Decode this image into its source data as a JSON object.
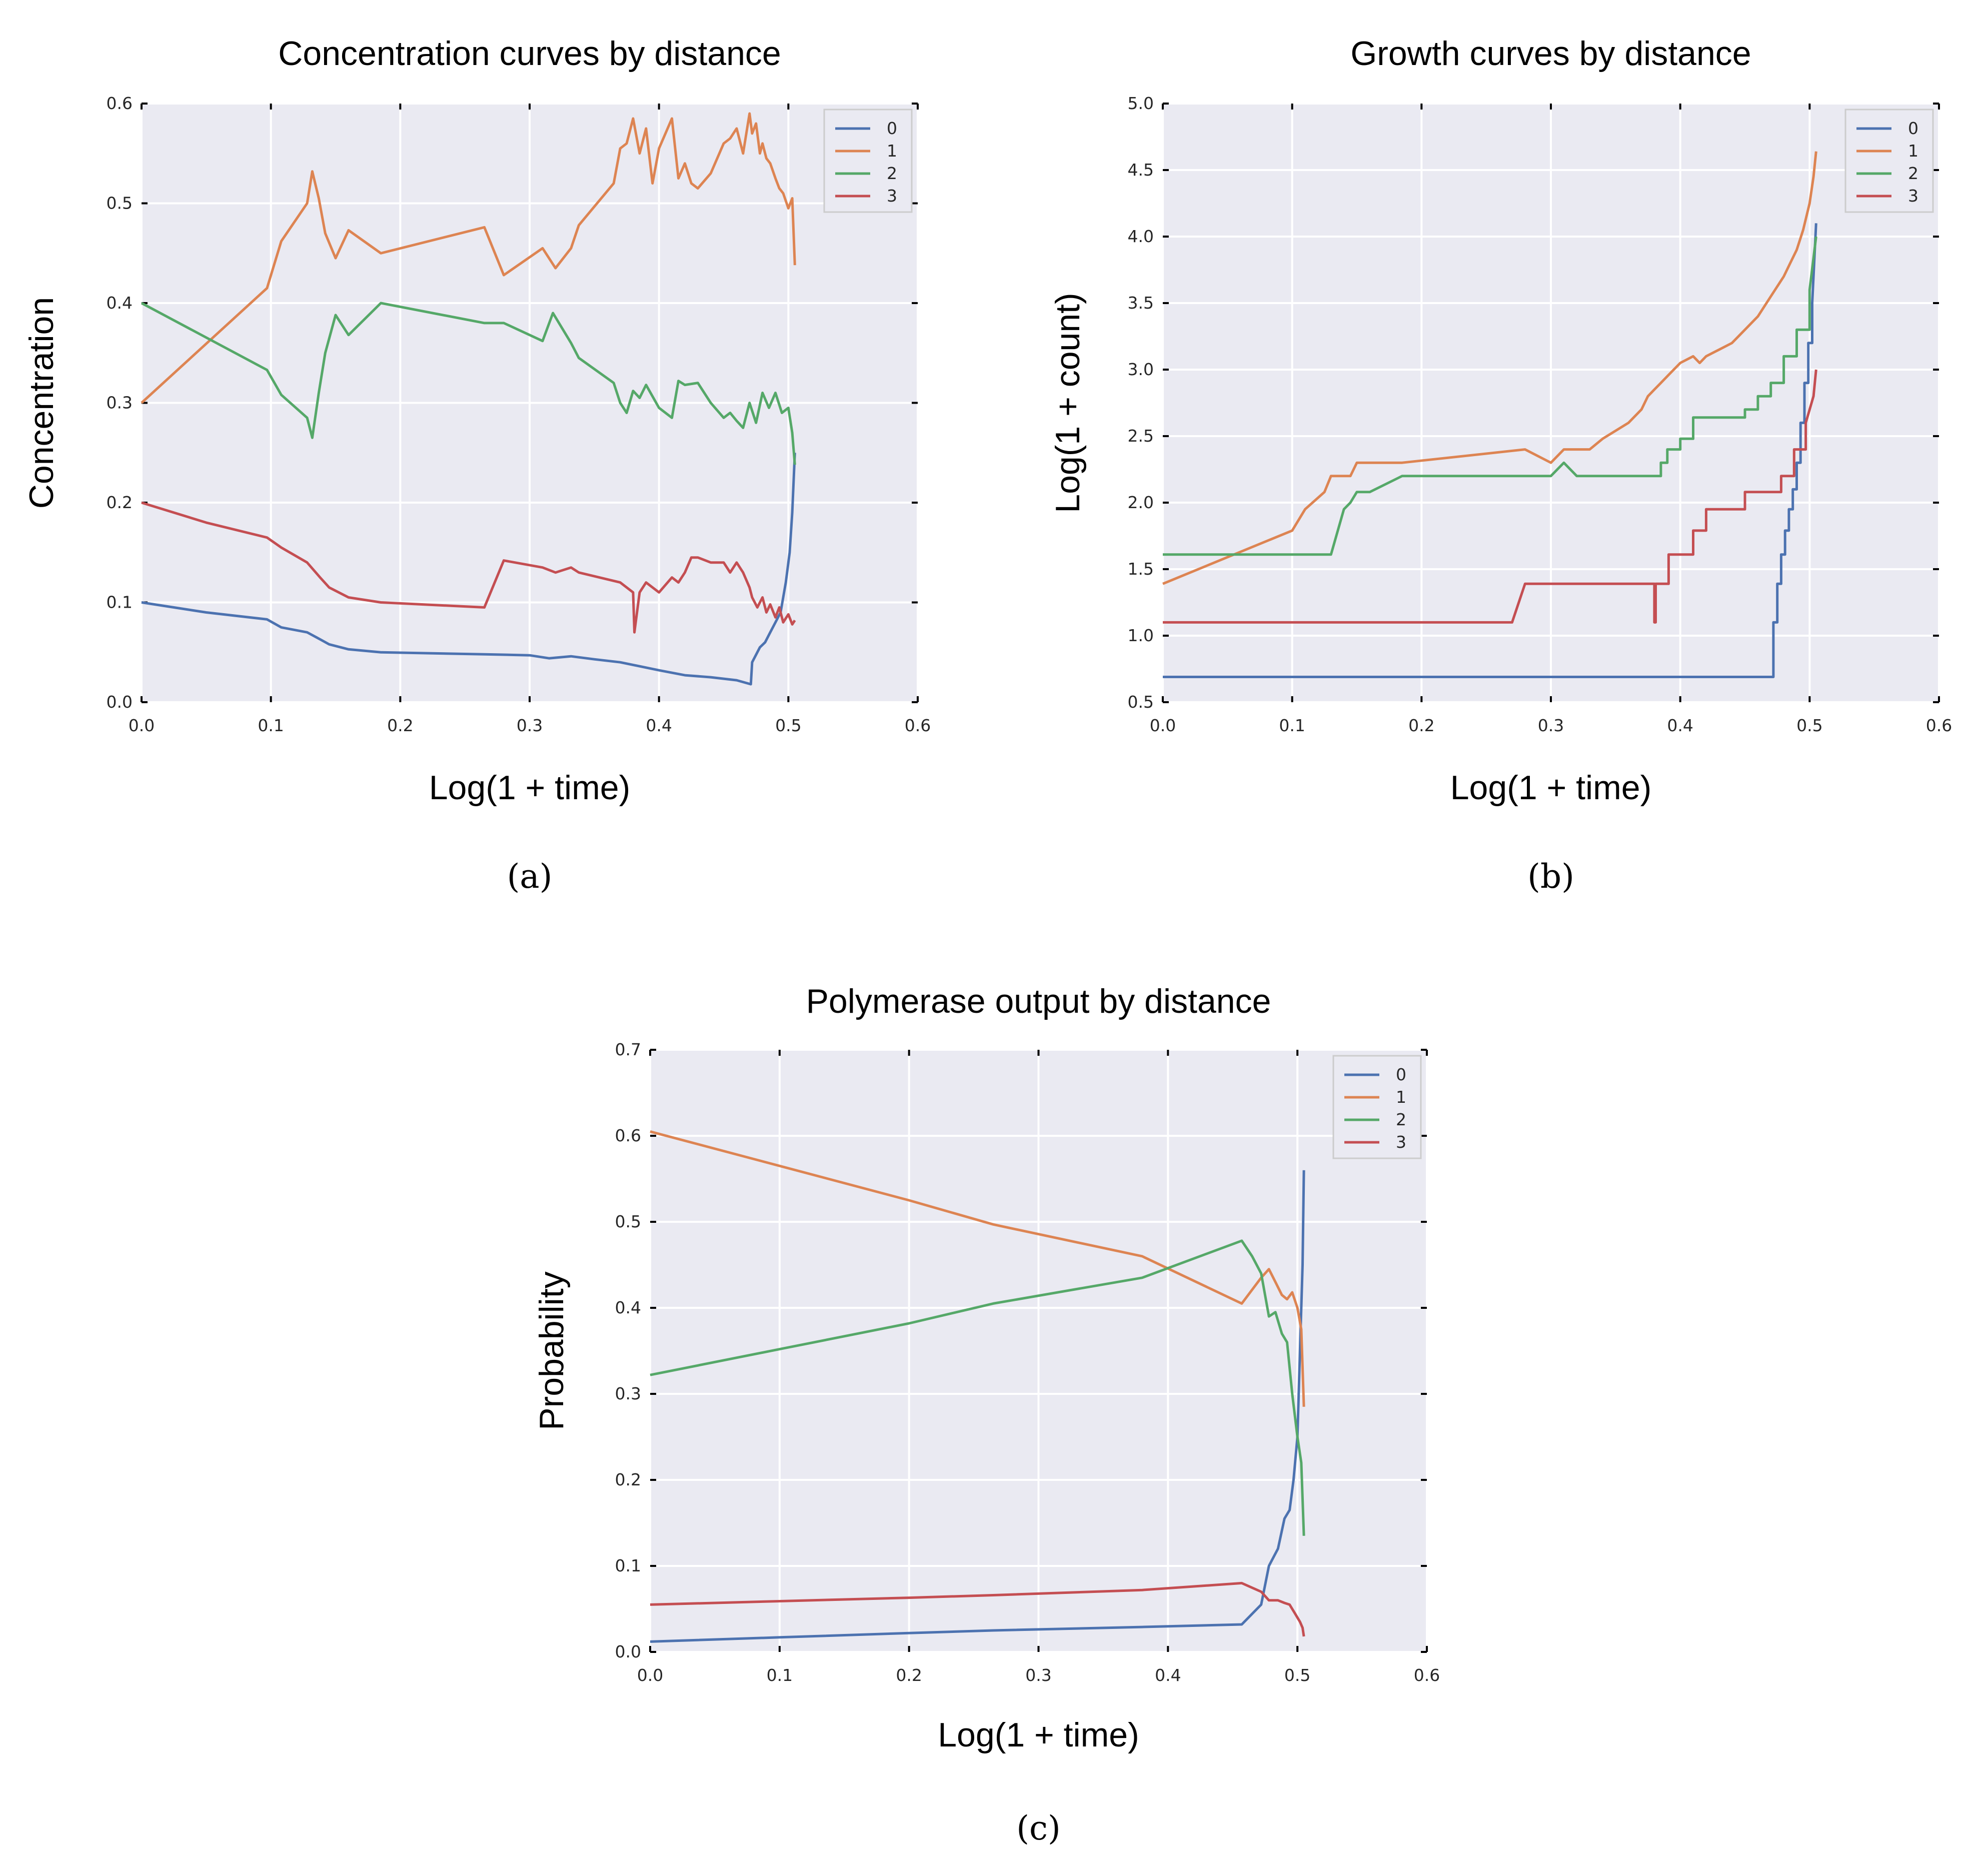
{
  "chart_data": [
    {
      "type": "line",
      "title": "Concentration curves by distance",
      "xlabel": "Log(1 + time)",
      "ylabel": "Concentration",
      "caption": "(a)",
      "xlim": [
        0,
        0.6
      ],
      "ylim": [
        0,
        0.6
      ],
      "xticks": [
        "0.0",
        "0.1",
        "0.2",
        "0.3",
        "0.4",
        "0.5",
        "0.6"
      ],
      "yticks": [
        "0.0",
        "0.1",
        "0.2",
        "0.3",
        "0.4",
        "0.5",
        "0.6"
      ],
      "grid": true,
      "legend": "top-right",
      "series": [
        {
          "name": "0",
          "color": "#4c72b0",
          "x": [
            0,
            0.05,
            0.097,
            0.108,
            0.128,
            0.138,
            0.145,
            0.16,
            0.185,
            0.265,
            0.3,
            0.315,
            0.332,
            0.35,
            0.37,
            0.4,
            0.42,
            0.44,
            0.46,
            0.471,
            0.472,
            0.478,
            0.482,
            0.486,
            0.49,
            0.494,
            0.498,
            0.501,
            0.503,
            0.505
          ],
          "y": [
            0.1,
            0.09,
            0.083,
            0.075,
            0.07,
            0.063,
            0.058,
            0.053,
            0.05,
            0.048,
            0.047,
            0.044,
            0.046,
            0.043,
            0.04,
            0.032,
            0.027,
            0.025,
            0.022,
            0.018,
            0.04,
            0.055,
            0.06,
            0.07,
            0.08,
            0.09,
            0.12,
            0.15,
            0.19,
            0.25
          ]
        },
        {
          "name": "1",
          "color": "#dd8452",
          "x": [
            0,
            0.097,
            0.108,
            0.128,
            0.132,
            0.137,
            0.142,
            0.15,
            0.16,
            0.185,
            0.265,
            0.28,
            0.31,
            0.32,
            0.332,
            0.338,
            0.365,
            0.37,
            0.375,
            0.38,
            0.385,
            0.39,
            0.395,
            0.4,
            0.41,
            0.415,
            0.42,
            0.425,
            0.43,
            0.44,
            0.45,
            0.455,
            0.46,
            0.465,
            0.47,
            0.472,
            0.475,
            0.478,
            0.48,
            0.483,
            0.486,
            0.49,
            0.493,
            0.496,
            0.5,
            0.503,
            0.505
          ],
          "y": [
            0.3,
            0.415,
            0.462,
            0.5,
            0.532,
            0.505,
            0.47,
            0.445,
            0.473,
            0.45,
            0.476,
            0.428,
            0.455,
            0.435,
            0.455,
            0.478,
            0.52,
            0.555,
            0.56,
            0.585,
            0.55,
            0.575,
            0.52,
            0.555,
            0.585,
            0.525,
            0.54,
            0.52,
            0.515,
            0.53,
            0.56,
            0.565,
            0.575,
            0.55,
            0.59,
            0.57,
            0.58,
            0.55,
            0.56,
            0.545,
            0.54,
            0.525,
            0.515,
            0.51,
            0.495,
            0.505,
            0.438
          ]
        },
        {
          "name": "2",
          "color": "#55a868",
          "x": [
            0,
            0.097,
            0.108,
            0.128,
            0.132,
            0.137,
            0.142,
            0.15,
            0.16,
            0.185,
            0.265,
            0.28,
            0.31,
            0.318,
            0.332,
            0.338,
            0.365,
            0.37,
            0.375,
            0.38,
            0.385,
            0.39,
            0.4,
            0.41,
            0.415,
            0.42,
            0.43,
            0.44,
            0.45,
            0.455,
            0.46,
            0.465,
            0.47,
            0.475,
            0.48,
            0.485,
            0.49,
            0.495,
            0.5,
            0.503,
            0.505
          ],
          "y": [
            0.4,
            0.333,
            0.308,
            0.285,
            0.265,
            0.31,
            0.35,
            0.388,
            0.368,
            0.4,
            0.38,
            0.38,
            0.362,
            0.39,
            0.36,
            0.345,
            0.32,
            0.3,
            0.29,
            0.312,
            0.305,
            0.318,
            0.295,
            0.285,
            0.322,
            0.318,
            0.32,
            0.3,
            0.285,
            0.29,
            0.282,
            0.275,
            0.3,
            0.28,
            0.31,
            0.295,
            0.31,
            0.29,
            0.295,
            0.27,
            0.238
          ]
        },
        {
          "name": "3",
          "color": "#c44e52",
          "x": [
            0,
            0.05,
            0.097,
            0.108,
            0.128,
            0.138,
            0.145,
            0.16,
            0.185,
            0.265,
            0.28,
            0.31,
            0.32,
            0.332,
            0.338,
            0.37,
            0.38,
            0.381,
            0.385,
            0.39,
            0.4,
            0.41,
            0.415,
            0.42,
            0.425,
            0.43,
            0.44,
            0.45,
            0.455,
            0.46,
            0.465,
            0.47,
            0.472,
            0.476,
            0.48,
            0.483,
            0.486,
            0.49,
            0.493,
            0.496,
            0.5,
            0.503,
            0.505
          ],
          "y": [
            0.2,
            0.18,
            0.165,
            0.155,
            0.14,
            0.125,
            0.115,
            0.105,
            0.1,
            0.095,
            0.142,
            0.135,
            0.13,
            0.135,
            0.13,
            0.12,
            0.11,
            0.07,
            0.11,
            0.12,
            0.11,
            0.125,
            0.12,
            0.13,
            0.145,
            0.145,
            0.14,
            0.14,
            0.13,
            0.14,
            0.13,
            0.115,
            0.105,
            0.095,
            0.105,
            0.09,
            0.098,
            0.085,
            0.095,
            0.08,
            0.088,
            0.078,
            0.082
          ]
        }
      ]
    },
    {
      "type": "line",
      "title": "Growth curves by distance",
      "xlabel": "Log(1 + time)",
      "ylabel": "Log(1 + count)",
      "caption": "(b)",
      "xlim": [
        0,
        0.6
      ],
      "ylim": [
        0.5,
        5.0
      ],
      "xticks": [
        "0.0",
        "0.1",
        "0.2",
        "0.3",
        "0.4",
        "0.5",
        "0.6"
      ],
      "yticks": [
        "0.5",
        "1.0",
        "1.5",
        "2.0",
        "2.5",
        "3.0",
        "3.5",
        "4.0",
        "4.5",
        "5.0"
      ],
      "grid": true,
      "legend": "top-right",
      "series": [
        {
          "name": "0",
          "color": "#4c72b0",
          "x": [
            0,
            0.47,
            0.472,
            0.472,
            0.475,
            0.475,
            0.478,
            0.478,
            0.481,
            0.481,
            0.484,
            0.484,
            0.487,
            0.487,
            0.49,
            0.49,
            0.493,
            0.493,
            0.496,
            0.496,
            0.499,
            0.499,
            0.502,
            0.502,
            0.503,
            0.504,
            0.505
          ],
          "y": [
            0.69,
            0.69,
            0.69,
            1.1,
            1.1,
            1.39,
            1.39,
            1.61,
            1.61,
            1.79,
            1.79,
            1.95,
            1.95,
            2.1,
            2.1,
            2.3,
            2.3,
            2.6,
            2.6,
            2.9,
            2.9,
            3.2,
            3.2,
            3.5,
            3.7,
            3.9,
            4.1
          ]
        },
        {
          "name": "1",
          "color": "#dd8452",
          "x": [
            0,
            0.1,
            0.11,
            0.125,
            0.13,
            0.145,
            0.15,
            0.16,
            0.185,
            0.28,
            0.3,
            0.31,
            0.32,
            0.33,
            0.34,
            0.36,
            0.37,
            0.375,
            0.38,
            0.385,
            0.39,
            0.395,
            0.4,
            0.41,
            0.415,
            0.42,
            0.43,
            0.44,
            0.45,
            0.46,
            0.47,
            0.48,
            0.485,
            0.49,
            0.495,
            0.5,
            0.503,
            0.505
          ],
          "y": [
            1.39,
            1.79,
            1.95,
            2.08,
            2.2,
            2.2,
            2.3,
            2.3,
            2.3,
            2.4,
            2.3,
            2.4,
            2.4,
            2.4,
            2.48,
            2.6,
            2.7,
            2.8,
            2.85,
            2.9,
            2.95,
            3.0,
            3.05,
            3.1,
            3.05,
            3.1,
            3.15,
            3.2,
            3.3,
            3.4,
            3.55,
            3.7,
            3.8,
            3.9,
            4.05,
            4.25,
            4.45,
            4.64
          ]
        },
        {
          "name": "2",
          "color": "#55a868",
          "x": [
            0,
            0.13,
            0.14,
            0.145,
            0.15,
            0.16,
            0.185,
            0.3,
            0.31,
            0.32,
            0.33,
            0.34,
            0.385,
            0.385,
            0.39,
            0.39,
            0.4,
            0.4,
            0.41,
            0.41,
            0.43,
            0.43,
            0.45,
            0.45,
            0.46,
            0.46,
            0.47,
            0.47,
            0.48,
            0.48,
            0.49,
            0.49,
            0.5,
            0.5,
            0.505
          ],
          "y": [
            1.61,
            1.61,
            1.95,
            2.0,
            2.08,
            2.08,
            2.2,
            2.2,
            2.3,
            2.2,
            2.2,
            2.2,
            2.2,
            2.3,
            2.3,
            2.4,
            2.4,
            2.48,
            2.48,
            2.64,
            2.64,
            2.64,
            2.64,
            2.7,
            2.7,
            2.8,
            2.8,
            2.9,
            2.9,
            3.1,
            3.1,
            3.3,
            3.3,
            3.6,
            4.0
          ]
        },
        {
          "name": "3",
          "color": "#c44e52",
          "x": [
            0,
            0.27,
            0.28,
            0.38,
            0.38,
            0.381,
            0.381,
            0.391,
            0.391,
            0.41,
            0.41,
            0.42,
            0.42,
            0.45,
            0.45,
            0.47,
            0.47,
            0.478,
            0.478,
            0.488,
            0.488,
            0.497,
            0.497,
            0.503,
            0.505
          ],
          "y": [
            1.1,
            1.1,
            1.39,
            1.39,
            1.1,
            1.1,
            1.39,
            1.39,
            1.61,
            1.61,
            1.79,
            1.79,
            1.95,
            1.95,
            2.08,
            2.08,
            2.08,
            2.08,
            2.2,
            2.2,
            2.4,
            2.4,
            2.6,
            2.8,
            3.0
          ]
        }
      ]
    },
    {
      "type": "line",
      "title": "Polymerase output by distance",
      "xlabel": "Log(1 + time)",
      "ylabel": "Probability",
      "caption": "(c)",
      "xlim": [
        0,
        0.6
      ],
      "ylim": [
        0,
        0.7
      ],
      "xticks": [
        "0.0",
        "0.1",
        "0.2",
        "0.3",
        "0.4",
        "0.5",
        "0.6"
      ],
      "yticks": [
        "0.0",
        "0.1",
        "0.2",
        "0.3",
        "0.4",
        "0.5",
        "0.6",
        "0.7"
      ],
      "grid": true,
      "legend": "top-right",
      "series": [
        {
          "name": "0",
          "color": "#4c72b0",
          "x": [
            0,
            0.1,
            0.2,
            0.265,
            0.38,
            0.457,
            0.472,
            0.478,
            0.485,
            0.49,
            0.494,
            0.497,
            0.5,
            0.502,
            0.504,
            0.505
          ],
          "y": [
            0.012,
            0.017,
            0.022,
            0.025,
            0.029,
            0.032,
            0.055,
            0.1,
            0.12,
            0.155,
            0.165,
            0.2,
            0.25,
            0.35,
            0.45,
            0.56
          ]
        },
        {
          "name": "1",
          "color": "#dd8452",
          "x": [
            0,
            0.1,
            0.2,
            0.265,
            0.38,
            0.457,
            0.472,
            0.478,
            0.483,
            0.488,
            0.492,
            0.496,
            0.5,
            0.503,
            0.505
          ],
          "y": [
            0.605,
            0.565,
            0.525,
            0.497,
            0.46,
            0.405,
            0.435,
            0.445,
            0.43,
            0.415,
            0.41,
            0.418,
            0.4,
            0.375,
            0.285
          ]
        },
        {
          "name": "2",
          "color": "#55a868",
          "x": [
            0,
            0.1,
            0.2,
            0.265,
            0.38,
            0.457,
            0.465,
            0.472,
            0.478,
            0.483,
            0.488,
            0.492,
            0.496,
            0.5,
            0.503,
            0.505
          ],
          "y": [
            0.322,
            0.352,
            0.382,
            0.405,
            0.435,
            0.478,
            0.46,
            0.44,
            0.39,
            0.395,
            0.37,
            0.36,
            0.3,
            0.25,
            0.22,
            0.135
          ]
        },
        {
          "name": "3",
          "color": "#c44e52",
          "x": [
            0,
            0.1,
            0.2,
            0.265,
            0.38,
            0.457,
            0.472,
            0.478,
            0.485,
            0.49,
            0.494,
            0.498,
            0.502,
            0.504,
            0.505
          ],
          "y": [
            0.055,
            0.059,
            0.063,
            0.066,
            0.072,
            0.08,
            0.07,
            0.06,
            0.06,
            0.057,
            0.055,
            0.045,
            0.035,
            0.028,
            0.018
          ]
        }
      ]
    }
  ]
}
